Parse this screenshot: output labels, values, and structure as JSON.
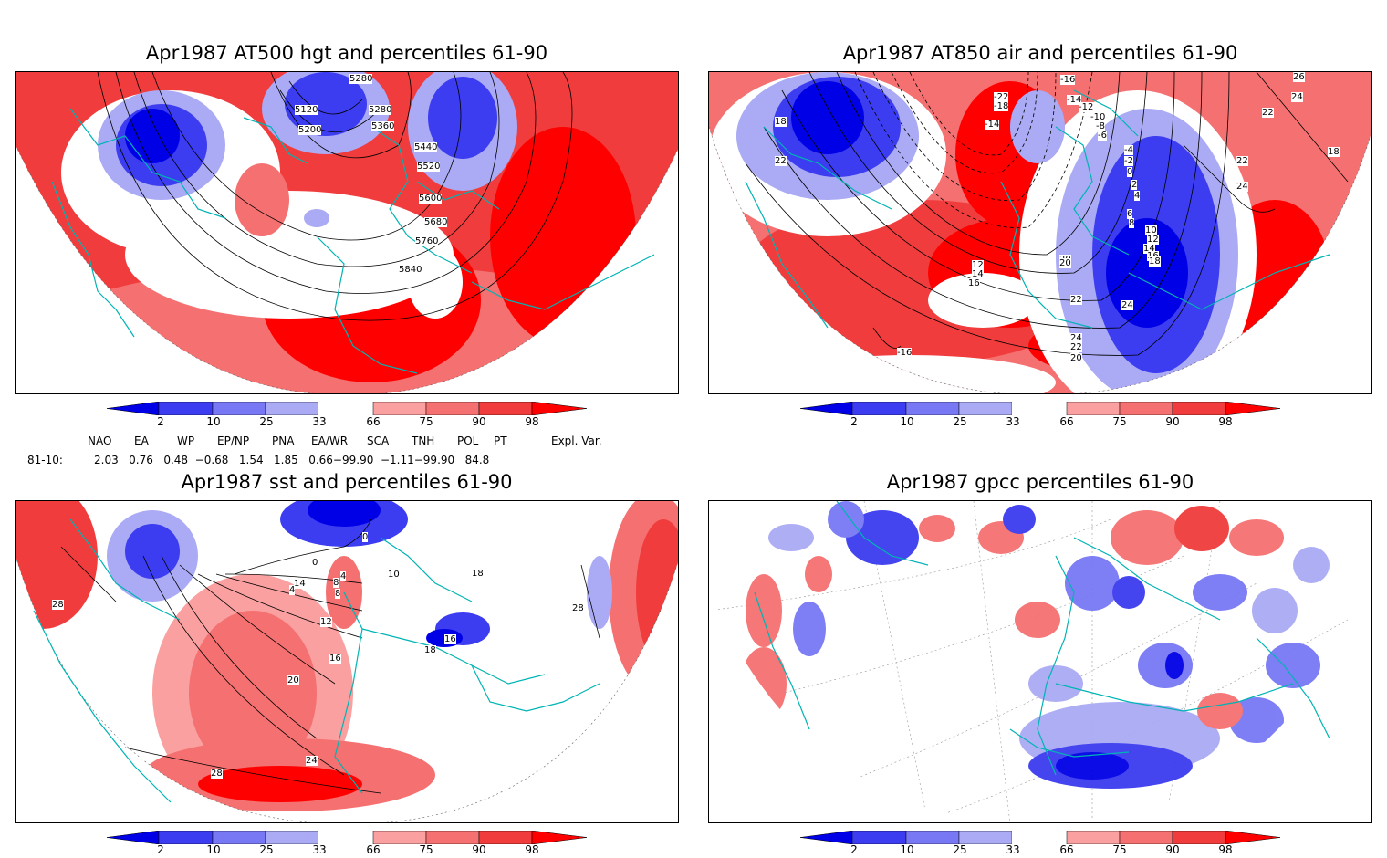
{
  "palette": {
    "blue_dark": "#0000e6",
    "blue_mid": "#3c3cf0",
    "blue_light": "#7878f5",
    "blue_pale": "#aaaaf5",
    "red_pale": "#faa0a0",
    "red_light": "#f57070",
    "red_mid": "#f03c3c",
    "red_dark": "#ff0000",
    "coast": "#00b4b4",
    "contour": "#000000"
  },
  "panels": [
    {
      "title": "Apr1987 AT500 hgt and percentiles 61-90",
      "contour_labels": [
        "5280",
        "5120",
        "5280",
        "5200",
        "5360",
        "5440",
        "5520",
        "5600",
        "5680",
        "5760",
        "5840"
      ]
    },
    {
      "title": "Apr1987 AT850 air and percentiles 61-90",
      "contour_labels": [
        "-16",
        "26",
        "24",
        "22",
        "18",
        "-22",
        "-18",
        "-14",
        "-12",
        "-14",
        "-10",
        "-8",
        "-6",
        "-4",
        "-2",
        "0",
        "2",
        "4",
        "6",
        "8",
        "10",
        "12",
        "14",
        "16",
        "18",
        "22",
        "24",
        "22",
        "18",
        "20",
        "12",
        "14",
        "16",
        "20",
        "22",
        "24",
        "24",
        "22",
        "20",
        "-16"
      ]
    },
    {
      "title": "Apr1987 sst and percentiles 61-90",
      "contour_labels": [
        "0",
        "0",
        "4",
        "8",
        "10",
        "14",
        "18",
        "28",
        "28",
        "4",
        "8",
        "12",
        "16",
        "18",
        "16",
        "20",
        "24",
        "28"
      ]
    },
    {
      "title": "Apr1987 gpcc percentiles 61-90",
      "contour_labels": []
    }
  ],
  "colorbar_labels": [
    "2",
    "10",
    "25",
    "33",
    "66",
    "75",
    "90",
    "98"
  ],
  "indices": {
    "headers": [
      "NAO",
      "EA",
      "WP",
      "EP/NP",
      "PNA",
      "EA/WR",
      "SCA",
      "TNH",
      "POL",
      "PT",
      "Expl. Var."
    ],
    "row_label": "81-10:",
    "values_text": "2.03   0.76   0.48  −0.68   1.54   1.85   0.66−99.90  −1.11−99.90   84.8"
  }
}
